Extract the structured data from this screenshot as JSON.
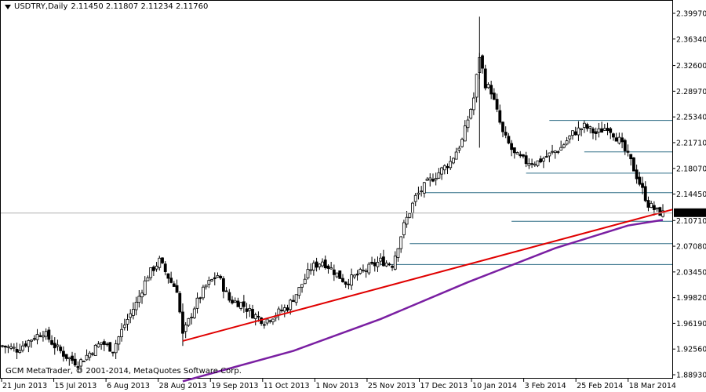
{
  "header": {
    "symbol": "USDTRY,Daily",
    "ohlc": "2.11450 2.11807 2.11234 2.11760"
  },
  "footer": {
    "copyright": "GCM MetaTrader, © 2001-2014, MetaQuotes Software Corp."
  },
  "colors": {
    "background": "#ffffff",
    "grid": "#000000",
    "candle": "#000000",
    "trendline": "#e00000",
    "moving_average": "#7a1fa2",
    "level_lines": "#2f6d86",
    "price_tag_bg": "#000000",
    "price_tag_text": "#ffffff"
  },
  "chart_data": {
    "type": "candlestick",
    "title": "USDTRY,Daily",
    "y_ticks": [
      "2.39970",
      "2.36340",
      "2.32600",
      "2.28970",
      "2.25340",
      "2.21710",
      "2.18070",
      "2.14450",
      "2.10710",
      "2.07080",
      "2.03450",
      "1.99820",
      "1.96190",
      "1.92560",
      "1.88930"
    ],
    "y_tick_values": [
      2.3997,
      2.3634,
      2.326,
      2.2897,
      2.2534,
      2.2171,
      2.1807,
      2.1445,
      2.1071,
      2.0708,
      2.0345,
      1.9982,
      1.9619,
      1.9256,
      1.8893
    ],
    "ylim": [
      1.8893,
      2.3997
    ],
    "x_ticks": [
      "21 Jun 2013",
      "15 Jul 2013",
      "6 Aug 2013",
      "28 Aug 2013",
      "19 Sep 2013",
      "11 Oct 2013",
      "1 Nov 2013",
      "25 Nov 2013",
      "17 Dec 2013",
      "10 Jan 2014",
      "3 Feb 2014",
      "25 Feb 2014",
      "18 Mar 2014"
    ],
    "last_price": "2.11760",
    "last_price_value": 2.1176,
    "grid": false,
    "close_path": [
      [
        0,
        1.93
      ],
      [
        5,
        1.925
      ],
      [
        10,
        1.94
      ],
      [
        14,
        1.95
      ],
      [
        18,
        1.93
      ],
      [
        22,
        1.915
      ],
      [
        26,
        1.905
      ],
      [
        30,
        1.92
      ],
      [
        34,
        1.935
      ],
      [
        38,
        1.925
      ],
      [
        42,
        1.96
      ],
      [
        46,
        1.99
      ],
      [
        50,
        2.03
      ],
      [
        54,
        2.05
      ],
      [
        58,
        2.02
      ],
      [
        60,
        2.01
      ],
      [
        62,
        1.945
      ],
      [
        66,
        1.985
      ],
      [
        70,
        2.015
      ],
      [
        74,
        2.03
      ],
      [
        78,
        1.995
      ],
      [
        82,
        1.99
      ],
      [
        86,
        1.975
      ],
      [
        90,
        1.965
      ],
      [
        94,
        1.975
      ],
      [
        98,
        1.985
      ],
      [
        102,
        2.01
      ],
      [
        106,
        2.04
      ],
      [
        110,
        2.05
      ],
      [
        114,
        2.035
      ],
      [
        118,
        2.02
      ],
      [
        122,
        2.03
      ],
      [
        126,
        2.04
      ],
      [
        130,
        2.05
      ],
      [
        134,
        2.045
      ],
      [
        138,
        2.1
      ],
      [
        142,
        2.14
      ],
      [
        146,
        2.16
      ],
      [
        150,
        2.175
      ],
      [
        154,
        2.19
      ],
      [
        158,
        2.22
      ],
      [
        162,
        2.28
      ],
      [
        164,
        2.34
      ],
      [
        166,
        2.3
      ],
      [
        168,
        2.29
      ],
      [
        172,
        2.23
      ],
      [
        176,
        2.2
      ],
      [
        180,
        2.19
      ],
      [
        184,
        2.19
      ],
      [
        188,
        2.2
      ],
      [
        192,
        2.21
      ],
      [
        196,
        2.23
      ],
      [
        200,
        2.24
      ],
      [
        204,
        2.23
      ],
      [
        208,
        2.24
      ],
      [
        212,
        2.22
      ],
      [
        216,
        2.19
      ],
      [
        219,
        2.16
      ],
      [
        222,
        2.13
      ],
      [
        225,
        2.12
      ],
      [
        227,
        2.117
      ]
    ],
    "trendline": [
      [
        62,
        1.937
      ],
      [
        227,
        2.119
      ]
    ],
    "moving_average": [
      [
        62,
        1.88
      ],
      [
        100,
        1.923
      ],
      [
        130,
        1.968
      ],
      [
        160,
        2.02
      ],
      [
        190,
        2.068
      ],
      [
        215,
        2.1
      ],
      [
        227,
        2.108
      ]
    ],
    "horizontal_levels": [
      {
        "value": 2.2485,
        "from": 188,
        "to": 227
      },
      {
        "value": 2.204,
        "from": 200,
        "to": 227
      },
      {
        "value": 2.174,
        "from": 180,
        "to": 227
      },
      {
        "value": 2.1465,
        "from": 145,
        "to": 227
      },
      {
        "value": 2.106,
        "from": 175,
        "to": 227
      },
      {
        "value": 2.0745,
        "from": 140,
        "to": 227
      },
      {
        "value": 2.045,
        "from": 130,
        "to": 227
      }
    ],
    "total_bars": 228
  }
}
